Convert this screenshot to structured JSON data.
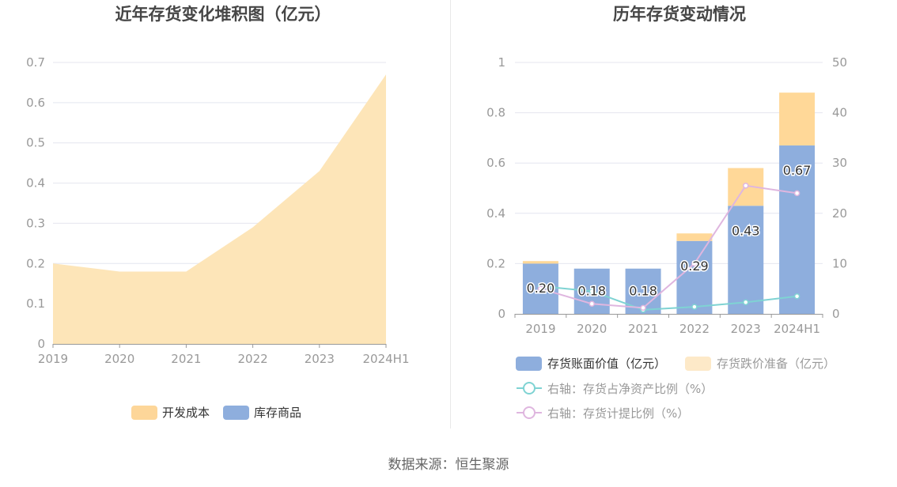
{
  "source_text": "数据来源：恒生聚源",
  "colors": {
    "area_dev_cost": "#fde5b8",
    "legend_dev_cost": "#fdd699",
    "legend_inventory_goods": "#8eaedd",
    "bar_book_value": "#8eaedd",
    "bar_provision": "#ffd898",
    "legend_provision": "#fde9c8",
    "line_net_ratio": "#7fd3d3",
    "line_provision_ratio": "#dfb6df",
    "grid": "#e4e6ef",
    "axis": "#999999",
    "title": "#464646",
    "divider": "#e8e8e8"
  },
  "chart_data": [
    {
      "type": "area",
      "title": "近年存货变化堆积图（亿元）",
      "categories": [
        "2019",
        "2020",
        "2021",
        "2022",
        "2023",
        "2024H1"
      ],
      "series": [
        {
          "name": "开发成本",
          "values": [
            0.2,
            0.18,
            0.18,
            0.29,
            0.43,
            0.67
          ]
        },
        {
          "name": "库存商品",
          "values": [
            0,
            0,
            0,
            0,
            0,
            0
          ]
        }
      ],
      "ylim": [
        0,
        0.7
      ],
      "yticks": [
        "0",
        "0.1",
        "0.2",
        "0.3",
        "0.4",
        "0.5",
        "0.6",
        "0.7"
      ],
      "grid": true,
      "legend": "bottom-center"
    },
    {
      "type": "bar",
      "title": "历年存货变动情况",
      "categories": [
        "2019",
        "2020",
        "2021",
        "2022",
        "2023",
        "2024H1"
      ],
      "series": [
        {
          "name": "存货账面价值（亿元）",
          "kind": "bar",
          "axis": "left",
          "values": [
            0.2,
            0.18,
            0.18,
            0.29,
            0.43,
            0.67
          ],
          "labels": [
            "0.20",
            "0.18",
            "0.18",
            "0.29",
            "0.43",
            "0.67"
          ]
        },
        {
          "name": "存货跌价准备（亿元）",
          "kind": "bar",
          "axis": "left",
          "values": [
            0.01,
            0,
            0,
            0.03,
            0.15,
            0.21
          ]
        },
        {
          "name": "右轴：存货占净资产比例（%）",
          "kind": "line",
          "axis": "right",
          "values": [
            5.5,
            4.5,
            0.8,
            1.4,
            2.3,
            3.5
          ]
        },
        {
          "name": "右轴：存货计提比例（%）",
          "kind": "line",
          "axis": "right",
          "values": [
            5.0,
            2.0,
            1.2,
            10.0,
            25.5,
            24.0
          ]
        }
      ],
      "ylim_left": [
        0,
        1
      ],
      "yticks_left": [
        "0",
        "0.2",
        "0.4",
        "0.6",
        "0.8",
        "1"
      ],
      "ylim_right": [
        0,
        50
      ],
      "yticks_right": [
        "0",
        "10",
        "20",
        "30",
        "40",
        "50"
      ],
      "grid": true,
      "legend": "bottom"
    }
  ]
}
